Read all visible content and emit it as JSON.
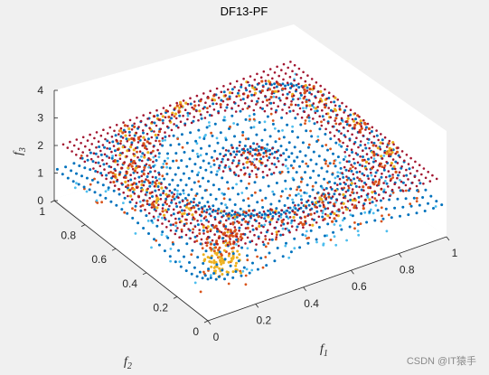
{
  "chart_data": {
    "type": "scatter",
    "title": "DF13-PF",
    "xlabel": {
      "base": "f",
      "sub": "1"
    },
    "ylabel": {
      "base": "f",
      "sub": "2"
    },
    "zlabel": {
      "base": "f",
      "sub": "3"
    },
    "xlim": [
      0,
      1
    ],
    "ylim": [
      0,
      1
    ],
    "zlim": [
      0,
      4
    ],
    "xticks": [
      "0",
      "0.2",
      "0.4",
      "0.6",
      "0.8",
      "1"
    ],
    "yticks": [
      "0",
      "0.2",
      "0.4",
      "0.6",
      "0.8",
      "1"
    ],
    "zticks": [
      "0",
      "1",
      "2",
      "3",
      "4"
    ],
    "grid": false,
    "view": "3d",
    "series": [
      {
        "color": "#A2142F",
        "values_desc": "upper front surface",
        "z_level": 2.0
      },
      {
        "color": "#0072BD",
        "values_desc": "middle surface"
      },
      {
        "color": "#D95319",
        "values_desc": "scattered points"
      },
      {
        "color": "#EDB120",
        "values_desc": "scattered points"
      },
      {
        "color": "#4DBEEE",
        "values_desc": "lower points"
      }
    ]
  },
  "watermark": "CSDN @IT猿手"
}
